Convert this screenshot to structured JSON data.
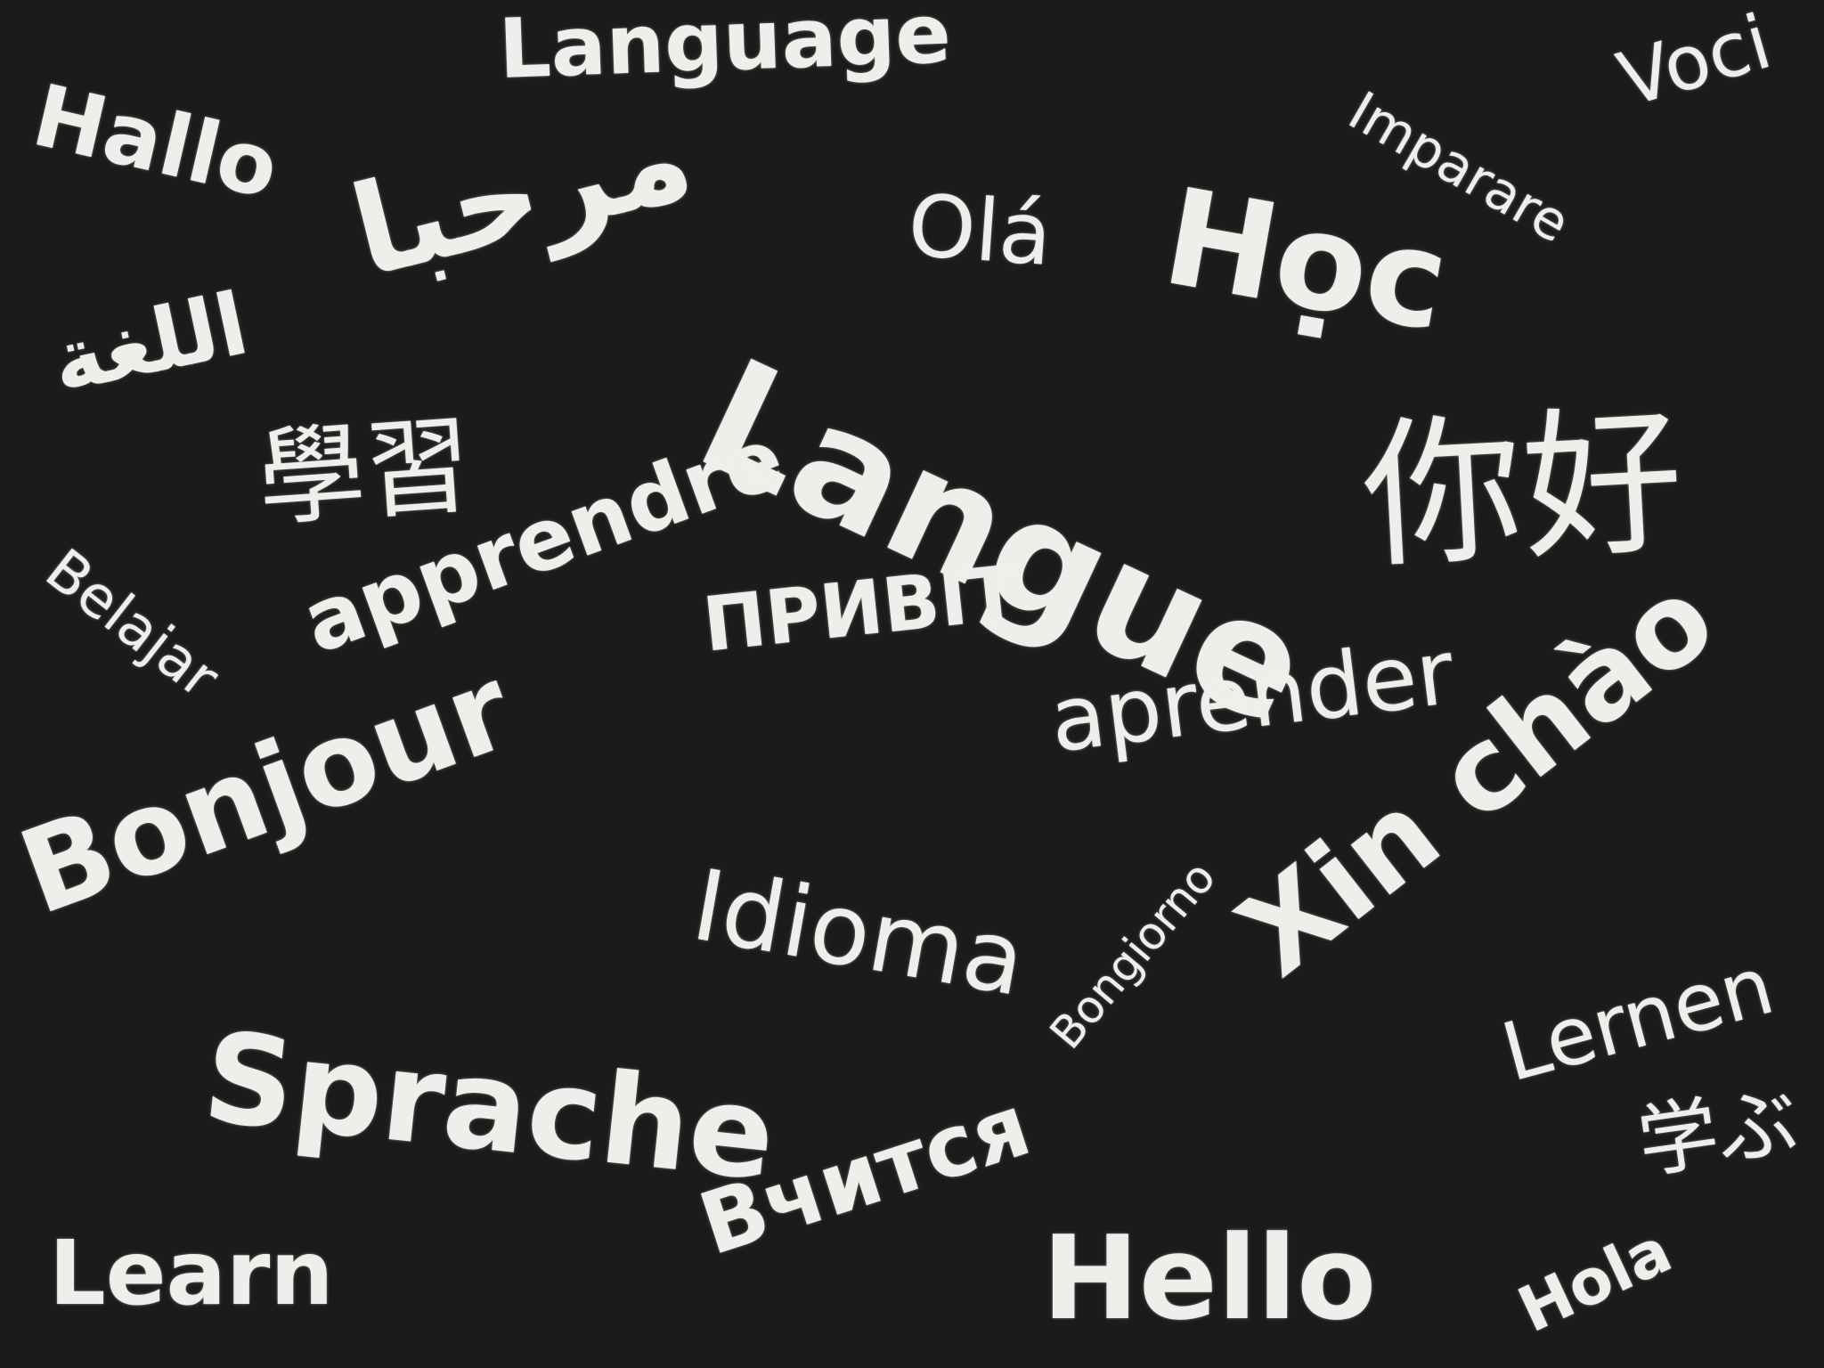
{
  "colors": {
    "background": "#1b1b1b",
    "chalk": "#eeeeea"
  },
  "words": {
    "hallo": "Hallo",
    "language": "Language",
    "imparare": "Imparare",
    "voci": "Voci",
    "marhaba": "مرحبا",
    "ola": "Olá",
    "hoc": "Học",
    "allugha": "اللغة",
    "langue": "Langue",
    "xuexi": "學習",
    "nihao": "你好",
    "belajar": "Belajar",
    "apprendre": "apprendre",
    "pryvit": "ПРИВІТ",
    "aprender": "aprender",
    "bonjour": "Bonjour",
    "xinchao": "Xin chào",
    "idioma": "Idioma",
    "bongiorno": "Bongiorno",
    "sprache": "Sprache",
    "lernen": "Lernen",
    "manabu": "学ぶ",
    "vchytsia": "Вчится",
    "learn": "Learn",
    "hello": "Hello",
    "hola": "Hola"
  }
}
